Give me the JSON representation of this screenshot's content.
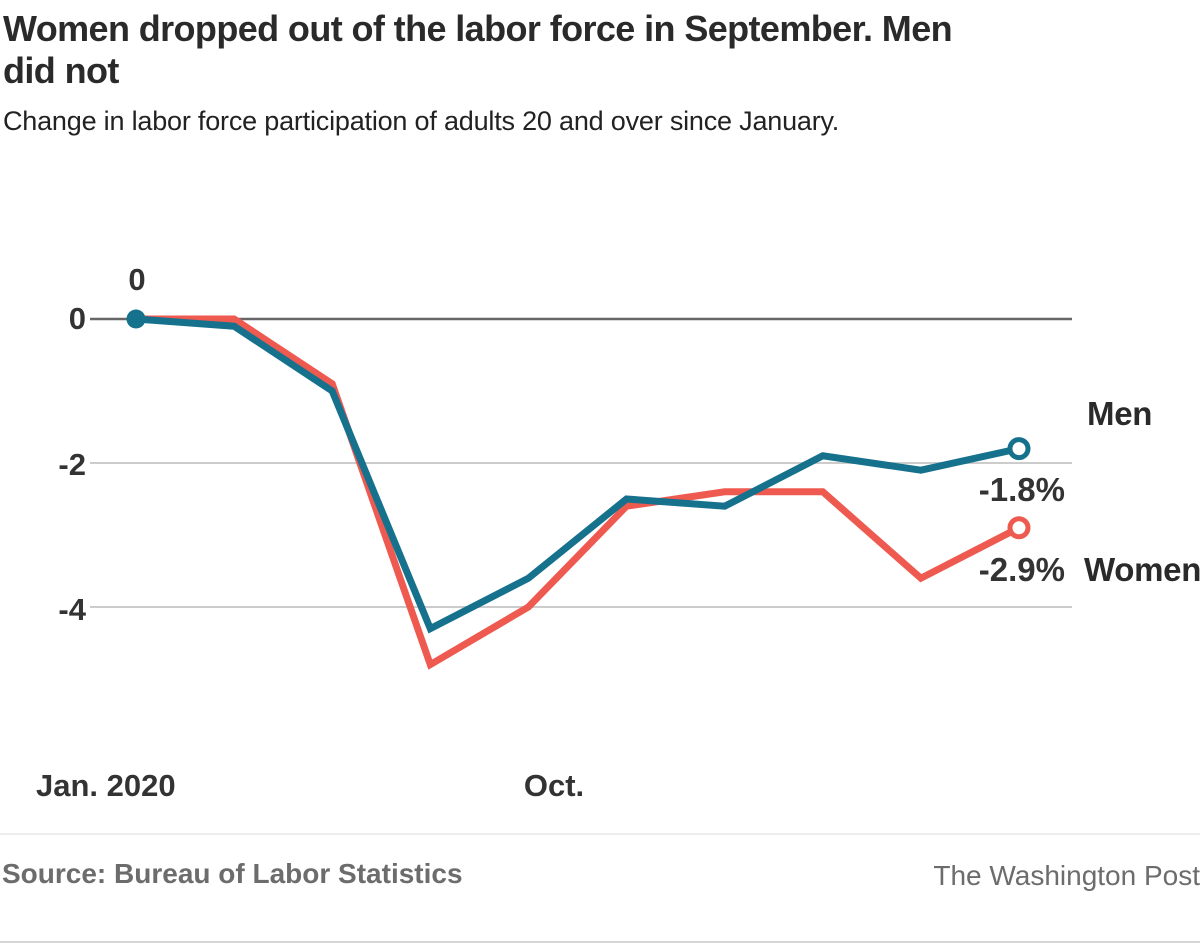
{
  "header": {
    "title_line1": "Women dropped out of the labor force in September. Men",
    "title_line2": "did not",
    "subtitle": "Change in labor force participation of adults 20 and over since January."
  },
  "chart_data": {
    "type": "line",
    "title": "Women dropped out of the labor force in September. Men did not",
    "subtitle": "Change in labor force participation of adults 20 and over since January.",
    "unit": "percentage points",
    "grid": "horizontal",
    "ylim": [
      -5.2,
      0.6
    ],
    "y_tick_values": [
      0,
      -2,
      -4
    ],
    "y_ticks": [
      "0",
      "-2",
      "-4"
    ],
    "x_ticks": [
      "Jan. 2020",
      "Oct."
    ],
    "start_annotation": "0",
    "series": [
      {
        "name": "Men",
        "color": "#16718d",
        "end_label": "-1.8%",
        "values": [
          0,
          -0.1,
          -1.0,
          -4.3,
          -3.6,
          -2.5,
          -2.6,
          -1.9,
          -2.1,
          -1.8
        ]
      },
      {
        "name": "Women",
        "color": "#ef5a50",
        "end_label": "-2.9%",
        "values": [
          0,
          0,
          -0.9,
          -4.8,
          -4.0,
          -2.6,
          -2.4,
          -2.4,
          -3.6,
          -2.9
        ]
      }
    ]
  },
  "colors": {
    "men": "#16718d",
    "women": "#ef5a50",
    "zero_line": "#676767",
    "gridline": "#cccccc",
    "title_text": "#2a2a2a",
    "axis_text": "#333333",
    "muted_text": "#6c6c6c"
  },
  "footer": {
    "source": "Source: Bureau of Labor Statistics",
    "credit": "The Washington Post"
  }
}
